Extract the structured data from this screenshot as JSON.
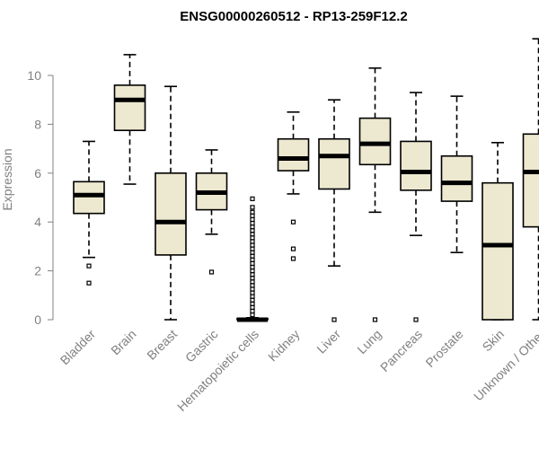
{
  "chart_data": {
    "type": "boxplot",
    "title": "ENSG00000260512 - RP13-259F12.2",
    "xlabel": "",
    "ylabel": "Expression",
    "ylim": [
      0,
      11.5
    ],
    "yticks": [
      0,
      2,
      4,
      6,
      8,
      10
    ],
    "box_fill": "#ede8d0",
    "categories": [
      "Bladder",
      "Brain",
      "Breast",
      "Gastric",
      "Hematopoietic cells",
      "Kidney",
      "Liver",
      "Lung",
      "Pancreas",
      "Prostate",
      "Skin",
      "Unknown / Other"
    ],
    "boxes": [
      {
        "name": "Bladder",
        "low": 2.55,
        "q1": 4.35,
        "median": 5.1,
        "q3": 5.65,
        "high": 7.3,
        "outliers": [
          2.2,
          1.5
        ]
      },
      {
        "name": "Brain",
        "low": 5.55,
        "q1": 7.75,
        "median": 9.0,
        "q3": 9.6,
        "high": 10.85,
        "outliers": []
      },
      {
        "name": "Breast",
        "low": 0.0,
        "q1": 2.65,
        "median": 4.0,
        "q3": 6.0,
        "high": 9.55,
        "outliers": []
      },
      {
        "name": "Gastric",
        "low": 3.5,
        "q1": 4.5,
        "median": 5.2,
        "q3": 6.0,
        "high": 6.95,
        "outliers": [
          1.95
        ]
      },
      {
        "name": "Hematopoietic cells",
        "low": 0.0,
        "q1": 0.0,
        "median": 0.0,
        "q3": 0.05,
        "high": 0.08,
        "outliers": [
          0.2,
          0.35,
          0.5,
          0.65,
          0.8,
          0.95,
          1.1,
          1.25,
          1.4,
          1.55,
          1.7,
          1.85,
          2.0,
          2.15,
          2.3,
          2.45,
          2.6,
          2.75,
          2.9,
          3.05,
          3.2,
          3.35,
          3.5,
          3.65,
          3.8,
          3.95,
          4.1,
          4.25,
          4.4,
          4.6,
          4.95
        ]
      },
      {
        "name": "Kidney",
        "low": 5.15,
        "q1": 6.1,
        "median": 6.6,
        "q3": 7.4,
        "high": 8.5,
        "outliers": [
          4.0,
          2.9,
          2.5
        ]
      },
      {
        "name": "Liver",
        "low": 2.2,
        "q1": 5.35,
        "median": 6.7,
        "q3": 7.4,
        "high": 9.0,
        "outliers": [
          0.0
        ]
      },
      {
        "name": "Lung",
        "low": 4.4,
        "q1": 6.35,
        "median": 7.2,
        "q3": 8.25,
        "high": 10.3,
        "outliers": [
          0.0
        ]
      },
      {
        "name": "Pancreas",
        "low": 3.45,
        "q1": 5.3,
        "median": 6.05,
        "q3": 7.3,
        "high": 9.3,
        "outliers": [
          0.0
        ]
      },
      {
        "name": "Prostate",
        "low": 2.75,
        "q1": 4.85,
        "median": 5.6,
        "q3": 6.7,
        "high": 9.15,
        "outliers": []
      },
      {
        "name": "Skin",
        "low": 0.0,
        "q1": 0.0,
        "median": 3.05,
        "q3": 5.6,
        "high": 7.25,
        "outliers": []
      },
      {
        "name": "Unknown / Other",
        "low": 0.0,
        "q1": 3.8,
        "median": 6.05,
        "q3": 7.6,
        "high": 11.5,
        "outliers": []
      }
    ]
  }
}
